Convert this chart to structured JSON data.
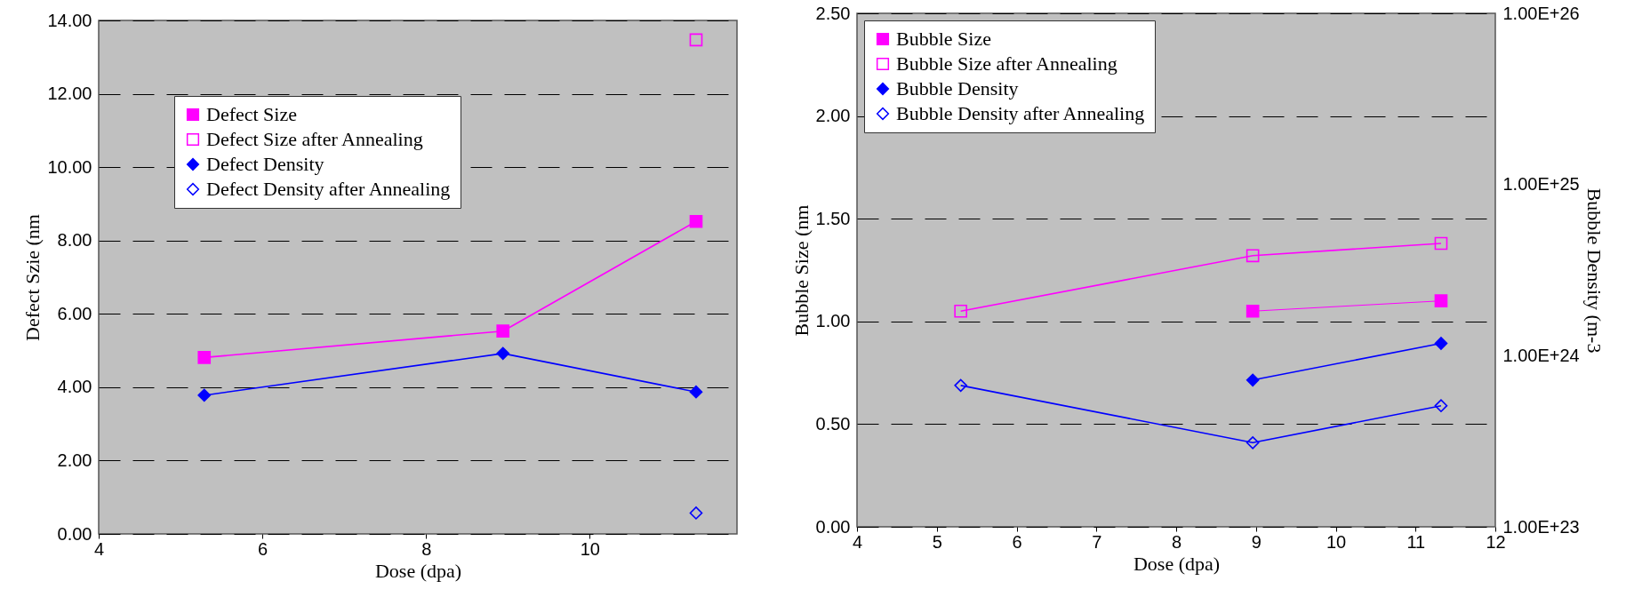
{
  "chart_data": [
    {
      "type": "line",
      "xlabel": "Dose (dpa)",
      "ylabel": "Defect Szie (nm",
      "x": [
        5.29,
        8.94,
        11.3
      ],
      "xlim": [
        4,
        11.8
      ],
      "xticks": [
        4,
        6,
        8,
        10
      ],
      "ylim": [
        0,
        14
      ],
      "yticks": [
        {
          "value": 0,
          "label": "0.00"
        },
        {
          "value": 2,
          "label": "2.00"
        },
        {
          "value": 4,
          "label": "4.00"
        },
        {
          "value": 6,
          "label": "6.00"
        },
        {
          "value": 8,
          "label": "8.00"
        },
        {
          "value": 10,
          "label": "10.00"
        },
        {
          "value": 12,
          "label": "12.00"
        },
        {
          "value": 14,
          "label": "14.00"
        }
      ],
      "grid": "y",
      "legend": "top left",
      "series": [
        {
          "name": "Defect Size",
          "color": "#ff00ff",
          "type": "line",
          "marker": "square",
          "values": [
            4.81,
            5.53,
            8.52
          ]
        },
        {
          "name": "Defect Size after Annealing",
          "color": "#ff00ff",
          "type": "scatter",
          "marker": "square",
          "x": [
            11.3
          ],
          "values": [
            13.47
          ]
        },
        {
          "name": "Defect Density",
          "color": "#0000ff",
          "type": "line",
          "marker": "diamond",
          "values": [
            3.78,
            4.92,
            3.87
          ]
        },
        {
          "name": "Defect Density after Annealing",
          "color": "#0000ff",
          "type": "scatter",
          "marker": "diamond",
          "x": [
            11.3
          ],
          "values": [
            0.57
          ]
        }
      ]
    },
    {
      "type": "line",
      "xlabel": "Dose (dpa)",
      "ylabel": "Bubble Size (nm",
      "y2label": "Bubble Density (m-3",
      "xlim": [
        4,
        12
      ],
      "xticks": [
        4,
        5,
        6,
        7,
        8,
        9,
        10,
        11,
        12
      ],
      "ylim": [
        0,
        2.5
      ],
      "yticks": [
        {
          "value": 0,
          "label": "0.00"
        },
        {
          "value": 0.5,
          "label": "0.50"
        },
        {
          "value": 1,
          "label": "1.00"
        },
        {
          "value": 1.5,
          "label": "1.50"
        },
        {
          "value": 2,
          "label": "2.00"
        },
        {
          "value": 2.5,
          "label": "2.50"
        }
      ],
      "y2lim": [
        1e+23,
        1e+26
      ],
      "y2ticks": [
        {
          "value": 1e+23,
          "label": "1.00E+23"
        },
        {
          "value": 1e+24,
          "label": "1.00E+24"
        },
        {
          "value": 1e+25,
          "label": "1.00E+25"
        },
        {
          "value": 1e+26,
          "label": "1.00E+26"
        }
      ],
      "log": "y2",
      "grid": "y",
      "legend": "top left",
      "series": [
        {
          "name": "Bubble Size",
          "color": "#ff00ff",
          "type": "line",
          "marker": "square",
          "x": [
            8.96,
            11.32
          ],
          "values": [
            1.05,
            1.1
          ]
        },
        {
          "name": "Bubble Size after Annealing",
          "color": "#ff00ff",
          "type": "line",
          "marker": "square",
          "x": [
            5.3,
            8.96,
            11.32
          ],
          "values": [
            1.05,
            1.32,
            1.38
          ]
        },
        {
          "name": "Bubble Density",
          "color": "#0000ff",
          "type": "line",
          "marker": "diamond",
          "axis": "y2",
          "x": [
            8.96,
            11.32
          ],
          "values": [
            7.2e+23,
            1.18e+24
          ]
        },
        {
          "name": "Bubble Density after Annealing",
          "color": "#0000ff",
          "type": "line",
          "marker": "diamond",
          "axis": "y2",
          "x": [
            5.3,
            8.96,
            11.32
          ],
          "values": [
            6.7e+23,
            3.1e+23,
            5.1e+23
          ]
        }
      ]
    }
  ]
}
